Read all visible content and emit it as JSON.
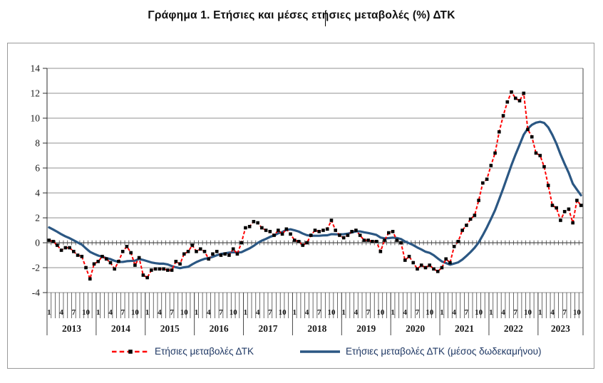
{
  "chart_data": {
    "type": "line",
    "title": "Γράφημα 1. Ετήσιες και μέσες ετήσιες μεταβολές (%) ΔΤΚ",
    "x_start": "2013-01",
    "x_end": "2023-11",
    "years": [
      "2013",
      "2014",
      "2015",
      "2016",
      "2017",
      "2018",
      "2019",
      "2020",
      "2021",
      "2022",
      "2023"
    ],
    "month_tick_labels": [
      "1",
      "4",
      "7",
      "10"
    ],
    "months_labeled": [
      1,
      4,
      7,
      10
    ],
    "ylim": [
      -4,
      14
    ],
    "ytick_interval": 2,
    "grid": true,
    "legend_position": "bottom",
    "series": [
      {
        "name": "Ετήσιες μεταβολές ΔΤΚ",
        "style": "dashed_line_with_square_markers",
        "color": "#ff0000",
        "marker_color": "#000000",
        "values": [
          0.2,
          0.1,
          -0.2,
          -0.6,
          -0.4,
          -0.4,
          -0.7,
          -1.0,
          -1.1,
          -2.0,
          -2.9,
          -1.7,
          -1.5,
          -1.1,
          -1.3,
          -1.6,
          -2.1,
          -1.5,
          -0.7,
          -0.3,
          -0.8,
          -1.8,
          -1.2,
          -2.6,
          -2.8,
          -2.2,
          -2.1,
          -2.1,
          -2.1,
          -2.2,
          -2.2,
          -1.5,
          -1.7,
          -0.9,
          -0.7,
          -0.2,
          -0.7,
          -0.5,
          -0.7,
          -1.3,
          -0.9,
          -0.7,
          -1.0,
          -0.9,
          -1.0,
          -0.5,
          -0.9,
          0.0,
          1.2,
          1.3,
          1.7,
          1.6,
          1.2,
          1.0,
          0.9,
          0.6,
          1.0,
          0.7,
          1.1,
          0.7,
          0.2,
          0.1,
          -0.2,
          0.0,
          0.6,
          1.0,
          0.9,
          1.0,
          1.1,
          1.8,
          1.0,
          0.6,
          0.4,
          0.6,
          0.9,
          1.0,
          0.6,
          0.2,
          0.2,
          0.1,
          0.1,
          -0.7,
          0.2,
          0.8,
          0.9,
          0.2,
          0.0,
          -1.4,
          -1.1,
          -1.6,
          -2.1,
          -1.8,
          -2.0,
          -1.8,
          -2.1,
          -2.3,
          -2.0,
          -1.3,
          -1.6,
          -0.3,
          0.1,
          1.0,
          1.4,
          1.9,
          2.2,
          3.4,
          4.8,
          5.1,
          6.2,
          7.2,
          8.9,
          10.2,
          11.3,
          12.1,
          11.6,
          11.4,
          12.0,
          9.1,
          8.5,
          7.2,
          7.0,
          6.1,
          4.6,
          3.0,
          2.8,
          1.8,
          2.5,
          2.7,
          1.6,
          3.4,
          3.0
        ]
      },
      {
        "name": "Ετήσιες μεταβολές ΔΤΚ (μέσος δωδεκαμήνου)",
        "style": "solid_line",
        "color": "#2b5783",
        "values": [
          1.23,
          1.06,
          0.88,
          0.68,
          0.51,
          0.37,
          0.2,
          0.02,
          -0.15,
          -0.45,
          -0.73,
          -0.89,
          -1.03,
          -1.13,
          -1.23,
          -1.31,
          -1.45,
          -1.54,
          -1.54,
          -1.48,
          -1.46,
          -1.44,
          -1.3,
          -1.38,
          -1.48,
          -1.58,
          -1.64,
          -1.68,
          -1.68,
          -1.74,
          -1.87,
          -1.97,
          -2.04,
          -1.97,
          -1.93,
          -1.73,
          -1.55,
          -1.41,
          -1.29,
          -1.23,
          -1.13,
          -1.0,
          -0.9,
          -0.85,
          -0.79,
          -0.76,
          -0.78,
          -0.76,
          -0.6,
          -0.45,
          -0.25,
          -0.01,
          0.17,
          0.31,
          0.47,
          0.59,
          0.76,
          0.86,
          1.03,
          1.08,
          1.0,
          0.9,
          0.74,
          0.61,
          0.56,
          0.56,
          0.56,
          0.59,
          0.6,
          0.69,
          0.68,
          0.68,
          0.69,
          0.73,
          0.83,
          0.91,
          0.91,
          0.84,
          0.78,
          0.71,
          0.63,
          0.42,
          0.35,
          0.37,
          0.41,
          0.38,
          0.3,
          0.1,
          -0.04,
          -0.19,
          -0.38,
          -0.54,
          -0.72,
          -0.81,
          -1.0,
          -1.26,
          -1.5,
          -1.63,
          -1.76,
          -1.67,
          -1.57,
          -1.35,
          -1.06,
          -0.75,
          -0.4,
          0.03,
          0.61,
          1.23,
          1.91,
          2.62,
          3.49,
          4.37,
          5.3,
          6.23,
          7.08,
          7.87,
          8.68,
          9.16,
          9.47,
          9.64,
          9.71,
          9.62,
          9.26,
          8.66,
          7.95,
          7.09,
          6.33,
          5.61,
          4.74,
          4.27,
          3.81
        ]
      }
    ]
  },
  "legend": {
    "items": [
      {
        "label": "Ετήσιες μεταβολές ΔΤΚ"
      },
      {
        "label": "Ετήσιες μεταβολές ΔΤΚ (μέσος δωδεκαμήνου)"
      }
    ]
  },
  "colors": {
    "grid": "#919191",
    "axis": "#2b2b2b",
    "minor_tick": "#454545",
    "axis_text": "#1a1a1a",
    "legend_text": "#1f3864",
    "box_border": "#9a9a9a",
    "background": "#ffffff"
  }
}
